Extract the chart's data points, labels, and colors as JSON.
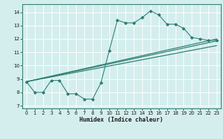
{
  "xlabel": "Humidex (Indice chaleur)",
  "bg_color": "#d4eeee",
  "grid_color": "#b8d8d8",
  "line_color": "#2d7d72",
  "xlim": [
    -0.5,
    23.5
  ],
  "ylim": [
    6.8,
    14.6
  ],
  "xticks": [
    0,
    1,
    2,
    3,
    4,
    5,
    6,
    7,
    8,
    9,
    10,
    11,
    12,
    13,
    14,
    15,
    16,
    17,
    18,
    19,
    20,
    21,
    22,
    23
  ],
  "yticks": [
    7,
    8,
    9,
    10,
    11,
    12,
    13,
    14
  ],
  "line1_x": [
    0,
    1,
    2,
    3,
    4,
    5,
    6,
    7,
    8,
    9,
    10,
    11,
    12,
    13,
    14,
    15,
    16,
    17,
    18,
    19,
    20,
    21,
    22,
    23
  ],
  "line1_y": [
    8.8,
    8.0,
    8.0,
    8.9,
    8.9,
    7.9,
    7.9,
    7.5,
    7.5,
    8.7,
    11.1,
    13.4,
    13.2,
    13.2,
    13.6,
    14.1,
    13.8,
    13.1,
    13.1,
    12.8,
    12.1,
    12.0,
    11.9,
    11.9
  ],
  "line2_x": [
    0,
    23
  ],
  "line2_y": [
    8.8,
    11.85
  ],
  "line3_x": [
    0,
    23
  ],
  "line3_y": [
    8.8,
    12.0
  ],
  "line4_x": [
    0,
    23
  ],
  "line4_y": [
    8.8,
    11.5
  ]
}
